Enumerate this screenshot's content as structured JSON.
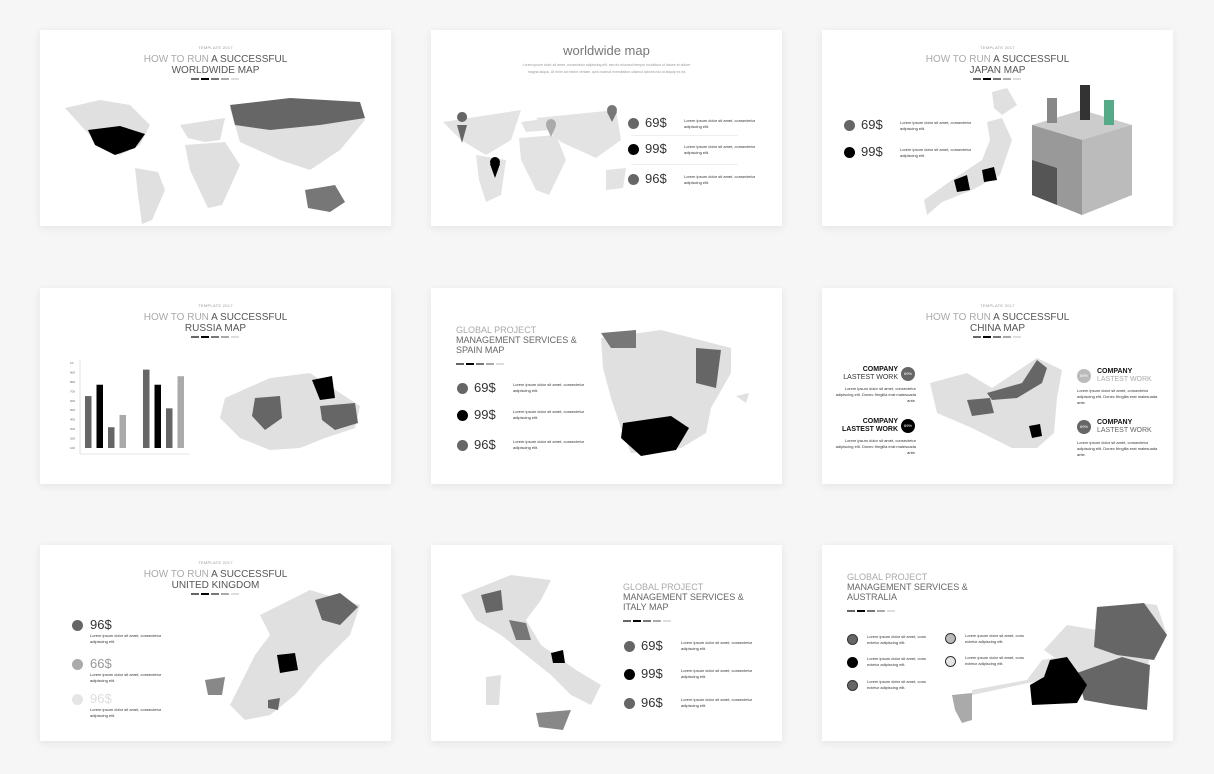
{
  "colors": {
    "dark": "#6b6b6b",
    "black": "#000000",
    "mid": "#b5b5b5",
    "light": "#dcdcdc",
    "map": "#e0e0e0"
  },
  "lorem_short": "Lorem ipsum dolor sit amet, consectetur adipiscing elit.",
  "lorem_cons": "Lorem ipsum dolor sit amet, cons ectetur adipiscing elit.",
  "lorem_long": "Lorem ipsum dolor sit amet, consectetur adipiscing elit. Donec fringilla erat malesuada ante.",
  "template": "TEMPLATE 2017",
  "how": "HOW TO RUN",
  "success": "A SUCCESSFUL",
  "global": "GLOBAL PROJECT",
  "mgmt": "MANAGEMENT SERVICES &",
  "slides": {
    "world": {
      "title2": "WORLDWIDE MAP"
    },
    "worldmap": {
      "title": "worldwide map",
      "subtitle": "Lorem ipsum dolor sit amet, consectetur adipiscing elit, sed do eiusmod tempor incididunt ut labore et dolore magna aliqua. Ut enim ad minim veniam, quis nostrud exercitation ullamco laboris nisi ut aliquip ex ea",
      "prices": [
        "69$",
        "99$",
        "96$"
      ]
    },
    "japan": {
      "title2": "JAPAN MAP",
      "prices": [
        "69$",
        "99$"
      ]
    },
    "russia": {
      "title2": "RUSSIA MAP",
      "chart_data": {
        "type": "bar",
        "yticks": [
          "1K",
          "900",
          "800",
          "700",
          "600",
          "500",
          "400",
          "300",
          "200",
          "100"
        ],
        "ylim": [
          100,
          1000
        ],
        "groups": [
          [
            650,
            770,
            320,
            450
          ],
          [
            930,
            770,
            520,
            860
          ]
        ]
      }
    },
    "spain": {
      "title3": "SPAIN MAP",
      "prices": [
        "69$",
        "99$",
        "96$"
      ]
    },
    "china": {
      "title2": "CHINA MAP",
      "company": "COMPANY",
      "work": "LASTEST WORK",
      "pct": "69%"
    },
    "uk": {
      "title2": "UNITED KINGDOM",
      "prices": [
        "96$",
        "66$",
        "96$"
      ]
    },
    "italy": {
      "title3": "ITALY MAP",
      "prices": [
        "69$",
        "99$",
        "96$"
      ]
    },
    "australia": {
      "title3": "AUSTRALIA"
    }
  }
}
